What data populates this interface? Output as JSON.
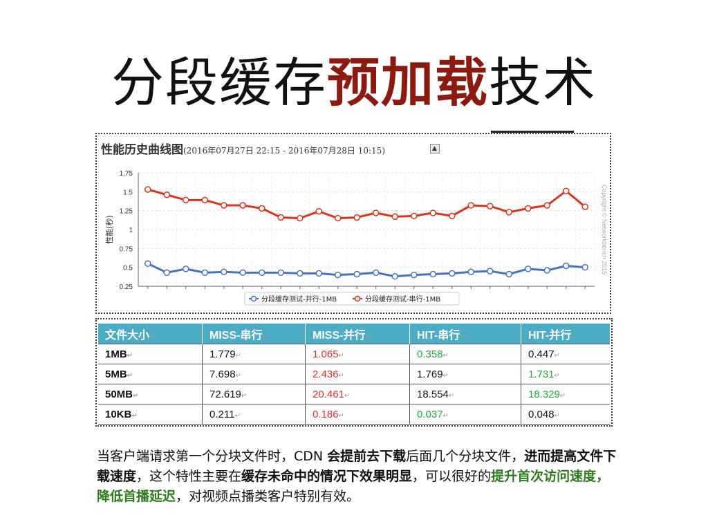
{
  "slide": {
    "title_part1": "分段缓存",
    "title_highlight": "预加载",
    "title_part2": "技术"
  },
  "chart_header": {
    "title": "性能历史曲线图",
    "range": "(2016年07月27日 22:15 - 2016年07月28日 10:15)",
    "collapse_icon": "collapse-arrow-icon",
    "collapse_glyph": "▲"
  },
  "chart_data": {
    "type": "line",
    "ylabel": "性能(秒)",
    "ylim": [
      0.25,
      1.75
    ],
    "yticks": [
      "1.75",
      "1.5",
      "1.25",
      "1",
      "0.75",
      "0.5",
      "0.25"
    ],
    "copyright": "Copyright © Networkbench 2015",
    "grid": true,
    "legend_position": "bottom",
    "series": [
      {
        "name": "分段缓存测试-并行-1MB",
        "color": "#4472c4",
        "values": [
          0.55,
          0.43,
          0.48,
          0.43,
          0.44,
          0.43,
          0.43,
          0.43,
          0.42,
          0.42,
          0.4,
          0.41,
          0.43,
          0.38,
          0.4,
          0.41,
          0.42,
          0.44,
          0.45,
          0.41,
          0.48,
          0.46,
          0.52,
          0.5
        ]
      },
      {
        "name": "分段缓存测试-串行-1MB",
        "color": "#d9341a",
        "values": [
          1.53,
          1.46,
          1.39,
          1.39,
          1.32,
          1.32,
          1.28,
          1.16,
          1.15,
          1.24,
          1.15,
          1.16,
          1.22,
          1.17,
          1.18,
          1.22,
          1.18,
          1.32,
          1.31,
          1.23,
          1.28,
          1.32,
          1.51,
          1.3
        ]
      }
    ]
  },
  "table": {
    "headers": [
      "文件大小",
      "MISS-串行",
      "MISS-并行",
      "HIT-串行",
      "HIT-并行"
    ],
    "header_marks": [
      "↵",
      "↵",
      "↵",
      "↵",
      "↵"
    ],
    "rows": [
      [
        "1MB",
        "1.779",
        "1.065",
        "0.358",
        "0.447"
      ],
      [
        "5MB",
        "7.698",
        "2.436",
        "1.769",
        "1.731"
      ],
      [
        "50MB",
        "72.619",
        "20.461",
        "18.554",
        "18.329"
      ],
      [
        "10KB",
        "0.211",
        "0.186",
        "0.037",
        "0.048"
      ]
    ],
    "cell_mark": "↵"
  },
  "caption": {
    "p1": "当客户端请求第一个分块文件时，CDN ",
    "b1": "会提前去下载",
    "p2": "后面几个分块文件，",
    "b2": "进而提高文件下载速度",
    "p3": "，这个特性主要在",
    "b3": "缓存未命中的情况下效果明显",
    "p4": "，可以很好的",
    "g1": "提升首次访问速度，降低首播延迟",
    "p5": "，对视频点播类客户特别有效。"
  }
}
